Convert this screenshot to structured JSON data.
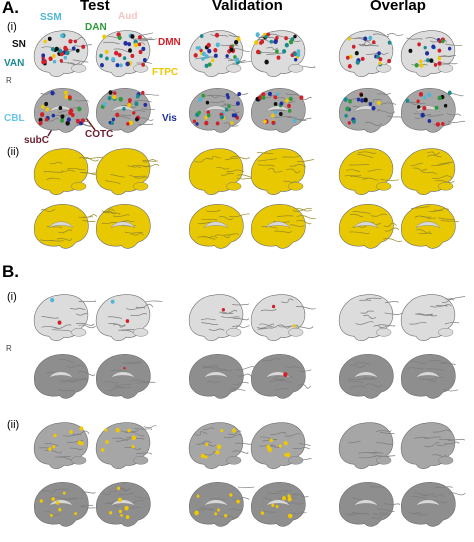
{
  "panels": {
    "a": "A.",
    "b": "B."
  },
  "columns": {
    "test": "Test",
    "validation": "Validation",
    "overlap": "Overlap"
  },
  "subpanels": {
    "i": "(i)",
    "ii": "(ii)"
  },
  "hemi_marker": "R",
  "networks": {
    "ssm": "SSM",
    "dan": "DAN",
    "aud": "Aud",
    "sn": "SN",
    "dmn": "DMN",
    "van": "VAN",
    "ftpc": "FTPC",
    "cbl": "CBL",
    "vis": "Vis",
    "subc": "subC",
    "cotc": "COTC"
  },
  "colors": {
    "ssm": "#4fb6d6",
    "dan": "#2e9a3c",
    "aud": "#f3c6c6",
    "sn": "#111111",
    "dmn": "#d2202a",
    "van": "#1b8a8f",
    "ftpc": "#f0c800",
    "cbl": "#6cc5e8",
    "vis": "#1f2fa0",
    "subc": "#6b1e2e",
    "cotc": "#6b1e2e",
    "brain_light": "#dcdcdc",
    "brain_mid": "#a6a6a6",
    "brain_dark": "#8e8e8e",
    "yellow": "#e8c800"
  }
}
